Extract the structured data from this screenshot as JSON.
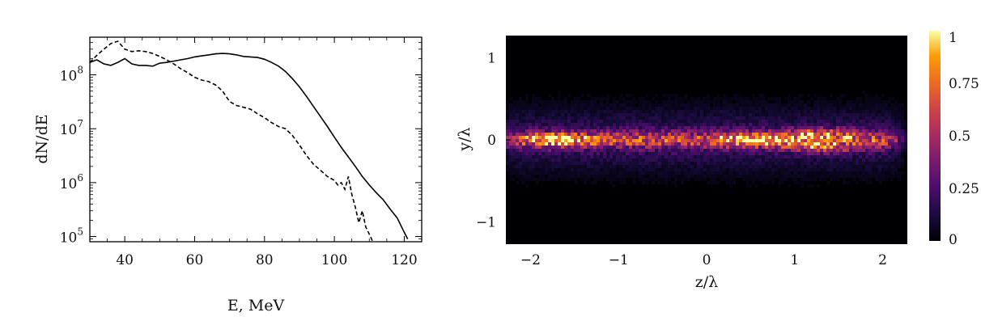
{
  "chart_data": [
    {
      "type": "line",
      "xlabel": "E, MeV",
      "ylabel": "dN/dE",
      "yscale": "log",
      "xlim": [
        30,
        125
      ],
      "ylim": [
        80000,
        500000000
      ],
      "x_ticks": [
        40,
        60,
        80,
        100,
        120
      ],
      "x_tick_labels": [
        "40",
        "60",
        "80",
        "100",
        "120"
      ],
      "y_ticks": [
        100000,
        1000000,
        10000000,
        100000000
      ],
      "y_tick_labels": [
        {
          "base": "10",
          "exp": "5"
        },
        {
          "base": "10",
          "exp": "6"
        },
        {
          "base": "10",
          "exp": "7"
        },
        {
          "base": "10",
          "exp": "8"
        }
      ],
      "grid": false,
      "legend": "none",
      "series": [
        {
          "style": "solid",
          "x": [
            30,
            32,
            34,
            36,
            38,
            40,
            42,
            44,
            46,
            48,
            50,
            52,
            54,
            56,
            58,
            60,
            62,
            64,
            66,
            68,
            70,
            72,
            74,
            76,
            78,
            80,
            82,
            84,
            86,
            88,
            90,
            92,
            94,
            96,
            98,
            100,
            102,
            104,
            106,
            108,
            110,
            112,
            114,
            116,
            118,
            120,
            121
          ],
          "y": [
            170000000,
            190000000,
            160000000,
            150000000,
            170000000,
            200000000,
            160000000,
            150000000,
            150000000,
            145000000,
            165000000,
            170000000,
            180000000,
            190000000,
            200000000,
            215000000,
            225000000,
            235000000,
            245000000,
            250000000,
            245000000,
            235000000,
            220000000,
            215000000,
            210000000,
            195000000,
            170000000,
            145000000,
            115000000,
            85000000,
            60000000,
            40000000,
            26000000,
            17000000,
            11000000,
            7000000,
            4500000,
            3000000,
            2000000,
            1300000,
            900000,
            650000,
            480000,
            320000,
            220000,
            120000,
            90000
          ]
        },
        {
          "style": "dashed",
          "x": [
            30,
            32,
            34,
            36,
            38,
            40,
            42,
            44,
            46,
            48,
            50,
            52,
            54,
            56,
            58,
            60,
            62,
            64,
            66,
            68,
            70,
            72,
            74,
            76,
            78,
            80,
            82,
            84,
            86,
            88,
            90,
            92,
            94,
            96,
            98,
            100,
            101,
            102,
            103,
            104,
            105,
            106,
            107,
            108,
            109,
            110,
            111
          ],
          "y": [
            170000000,
            230000000,
            300000000,
            380000000,
            420000000,
            300000000,
            270000000,
            280000000,
            270000000,
            250000000,
            220000000,
            190000000,
            160000000,
            130000000,
            110000000,
            90000000,
            80000000,
            75000000,
            65000000,
            50000000,
            32000000,
            27000000,
            25000000,
            23000000,
            19000000,
            16000000,
            13000000,
            11000000,
            10000000,
            7500000,
            5000000,
            3200000,
            2200000,
            1700000,
            1300000,
            1100000,
            900000,
            1000000,
            750000,
            1300000,
            600000,
            350000,
            180000,
            300000,
            150000,
            110000,
            80000
          ]
        }
      ]
    },
    {
      "type": "heatmap",
      "xlabel": "z/λ",
      "ylabel": "y/λ",
      "xlim": [
        -2.28,
        2.28
      ],
      "ylim": [
        -1.27,
        1.27
      ],
      "x_ticks": [
        -2,
        -1,
        0,
        1,
        2
      ],
      "x_tick_labels": [
        "−2",
        "−1",
        "0",
        "1",
        "2"
      ],
      "y_ticks": [
        -1,
        0,
        1
      ],
      "y_tick_labels": [
        "−1",
        "0",
        "1"
      ],
      "colormap": "inferno",
      "colorbar": {
        "range": [
          0,
          1
        ],
        "ticks": [
          0,
          0.25,
          0.5,
          0.75,
          1
        ],
        "tick_labels": [
          "0",
          "0.25",
          "0.5",
          "0.75",
          "1"
        ]
      },
      "grid": false,
      "background_color": "#000004",
      "structure": {
        "sheet_center_y": 0.0,
        "sheet_half_thickness_y": 0.1,
        "halo_half_thickness_y": 0.35,
        "sheet_extent_z": [
          -2.2,
          2.1
        ],
        "hotspots": [
          {
            "z": -1.7,
            "y": 0.0,
            "peak": 0.78
          },
          {
            "z": 0.55,
            "y": 0.0,
            "peak": 0.92
          },
          {
            "z": 1.3,
            "y": 0.08,
            "peak": 0.65
          },
          {
            "z": 1.3,
            "y": -0.1,
            "peak": 0.6
          }
        ]
      }
    }
  ]
}
